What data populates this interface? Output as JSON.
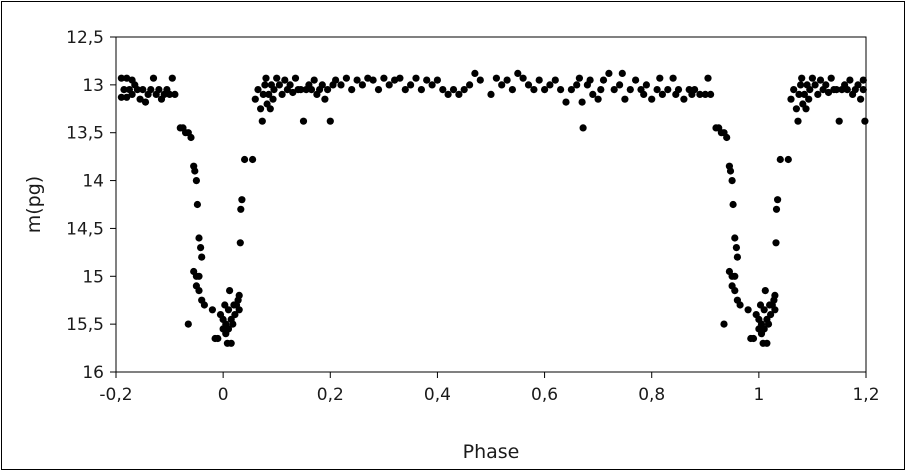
{
  "chart_data": {
    "type": "scatter",
    "xlabel": "Phase",
    "ylabel": "m(pg)",
    "xlim": [
      -0.2,
      1.2
    ],
    "ylim": [
      16,
      12.5
    ],
    "y_inverted": true,
    "grid": false,
    "legend": "none",
    "marker_color": "#000000",
    "x_ticks": [
      "-0,2",
      "0",
      "0,2",
      "0,4",
      "0,6",
      "0,8",
      "1",
      "1,2"
    ],
    "x_tick_values": [
      -0.2,
      0,
      0.2,
      0.4,
      0.6,
      0.8,
      1,
      1.2
    ],
    "y_ticks": [
      "12,5",
      "13",
      "13,5",
      "14",
      "14,5",
      "15",
      "15,5",
      "16"
    ],
    "y_tick_values": [
      12.5,
      13,
      13.5,
      14,
      14.5,
      15,
      15.5,
      16
    ],
    "series": [
      {
        "points": [
          [
            -0.19,
            12.93
          ],
          [
            -0.19,
            13.13
          ],
          [
            -0.185,
            13.05
          ],
          [
            -0.18,
            12.93
          ],
          [
            -0.18,
            13.13
          ],
          [
            -0.175,
            13.05
          ],
          [
            -0.17,
            12.95
          ],
          [
            -0.17,
            13.1
          ],
          [
            -0.165,
            13.0
          ],
          [
            -0.16,
            13.05
          ],
          [
            -0.155,
            13.15
          ],
          [
            -0.15,
            13.05
          ],
          [
            -0.145,
            13.18
          ],
          [
            -0.14,
            13.1
          ],
          [
            -0.135,
            13.05
          ],
          [
            -0.13,
            12.93
          ],
          [
            -0.125,
            13.1
          ],
          [
            -0.12,
            13.05
          ],
          [
            -0.115,
            13.15
          ],
          [
            -0.11,
            13.1
          ],
          [
            -0.105,
            13.05
          ],
          [
            -0.1,
            13.1
          ],
          [
            -0.095,
            12.93
          ],
          [
            -0.09,
            13.1
          ],
          [
            -0.08,
            13.45
          ],
          [
            -0.075,
            13.45
          ],
          [
            -0.07,
            13.5
          ],
          [
            -0.065,
            13.5
          ],
          [
            -0.06,
            13.55
          ],
          [
            -0.055,
            13.85
          ],
          [
            -0.053,
            13.9
          ],
          [
            -0.05,
            14.0
          ],
          [
            -0.048,
            14.25
          ],
          [
            -0.045,
            14.6
          ],
          [
            -0.042,
            14.7
          ],
          [
            -0.04,
            14.8
          ],
          [
            -0.055,
            14.95
          ],
          [
            -0.05,
            15.0
          ],
          [
            -0.045,
            15.0
          ],
          [
            -0.05,
            15.1
          ],
          [
            -0.045,
            15.15
          ],
          [
            -0.04,
            15.25
          ],
          [
            -0.035,
            15.3
          ],
          [
            -0.065,
            15.5
          ],
          [
            -0.02,
            15.35
          ],
          [
            -0.015,
            15.65
          ],
          [
            -0.01,
            15.65
          ],
          [
            -0.005,
            15.4
          ],
          [
            0.0,
            15.45
          ],
          [
            0.0,
            15.55
          ],
          [
            0.003,
            15.3
          ],
          [
            0.005,
            15.5
          ],
          [
            0.005,
            15.6
          ],
          [
            0.008,
            15.7
          ],
          [
            0.01,
            15.35
          ],
          [
            0.01,
            15.55
          ],
          [
            0.012,
            15.15
          ],
          [
            0.015,
            15.45
          ],
          [
            0.015,
            15.7
          ],
          [
            0.018,
            15.5
          ],
          [
            0.02,
            15.3
          ],
          [
            0.022,
            15.4
          ],
          [
            0.025,
            15.3
          ],
          [
            0.028,
            15.25
          ],
          [
            0.03,
            15.2
          ],
          [
            0.03,
            15.35
          ],
          [
            0.032,
            14.65
          ],
          [
            0.033,
            14.3
          ],
          [
            0.035,
            14.2
          ],
          [
            0.04,
            13.78
          ],
          [
            0.055,
            13.78
          ],
          [
            0.06,
            13.15
          ],
          [
            0.065,
            13.05
          ],
          [
            0.07,
            13.25
          ],
          [
            0.073,
            13.38
          ],
          [
            0.075,
            13.1
          ],
          [
            0.078,
            13.0
          ],
          [
            0.08,
            12.93
          ],
          [
            0.082,
            13.2
          ],
          [
            0.085,
            13.1
          ],
          [
            0.088,
            13.25
          ],
          [
            0.09,
            13.0
          ],
          [
            0.093,
            13.15
          ],
          [
            0.095,
            13.05
          ],
          [
            0.1,
            12.93
          ],
          [
            0.105,
            13.0
          ],
          [
            0.11,
            13.1
          ],
          [
            0.115,
            12.95
          ],
          [
            0.12,
            13.05
          ],
          [
            0.125,
            13.0
          ],
          [
            0.13,
            13.08
          ],
          [
            0.135,
            12.93
          ],
          [
            0.14,
            13.05
          ],
          [
            0.145,
            13.05
          ],
          [
            0.15,
            13.38
          ],
          [
            0.155,
            13.05
          ],
          [
            0.16,
            13.0
          ],
          [
            0.165,
            13.05
          ],
          [
            0.17,
            12.95
          ],
          [
            0.175,
            13.1
          ],
          [
            0.18,
            13.05
          ],
          [
            0.185,
            13.0
          ],
          [
            0.19,
            13.15
          ],
          [
            0.195,
            13.05
          ],
          [
            0.2,
            13.38
          ],
          [
            0.205,
            13.0
          ],
          [
            0.21,
            12.95
          ],
          [
            0.22,
            13.0
          ],
          [
            0.23,
            12.93
          ],
          [
            0.24,
            13.05
          ],
          [
            0.25,
            12.95
          ],
          [
            0.26,
            13.0
          ],
          [
            0.27,
            12.93
          ],
          [
            0.28,
            12.95
          ],
          [
            0.29,
            13.05
          ],
          [
            0.3,
            12.93
          ],
          [
            0.31,
            13.0
          ],
          [
            0.32,
            12.95
          ],
          [
            0.33,
            12.93
          ],
          [
            0.34,
            13.05
          ],
          [
            0.35,
            13.0
          ],
          [
            0.36,
            12.93
          ],
          [
            0.37,
            13.05
          ],
          [
            0.38,
            12.95
          ],
          [
            0.39,
            13.0
          ],
          [
            0.4,
            12.95
          ],
          [
            0.41,
            13.05
          ],
          [
            0.42,
            13.1
          ],
          [
            0.43,
            13.05
          ],
          [
            0.44,
            13.1
          ],
          [
            0.45,
            13.05
          ],
          [
            0.46,
            13.0
          ],
          [
            0.47,
            12.88
          ],
          [
            0.48,
            12.95
          ],
          [
            0.5,
            13.1
          ],
          [
            0.51,
            12.93
          ],
          [
            0.52,
            13.0
          ],
          [
            0.53,
            12.95
          ],
          [
            0.54,
            13.05
          ],
          [
            0.55,
            12.88
          ],
          [
            0.56,
            12.93
          ],
          [
            0.57,
            13.0
          ],
          [
            0.58,
            13.05
          ],
          [
            0.59,
            12.95
          ],
          [
            0.6,
            13.05
          ],
          [
            0.61,
            13.0
          ],
          [
            0.62,
            12.95
          ],
          [
            0.63,
            13.05
          ],
          [
            0.64,
            13.18
          ],
          [
            0.65,
            13.05
          ],
          [
            0.66,
            13.0
          ],
          [
            0.665,
            12.93
          ],
          [
            0.67,
            13.18
          ],
          [
            0.672,
            13.45
          ],
          [
            0.68,
            13.0
          ],
          [
            0.685,
            12.95
          ],
          [
            0.69,
            13.1
          ],
          [
            0.7,
            13.15
          ],
          [
            0.705,
            13.05
          ],
          [
            0.71,
            12.95
          ],
          [
            0.72,
            12.88
          ],
          [
            0.73,
            13.05
          ],
          [
            0.74,
            13.0
          ],
          [
            0.745,
            12.88
          ],
          [
            0.75,
            13.15
          ],
          [
            0.76,
            13.05
          ],
          [
            0.77,
            12.95
          ],
          [
            0.78,
            13.05
          ],
          [
            0.785,
            13.1
          ],
          [
            0.79,
            13.0
          ],
          [
            0.8,
            13.15
          ],
          [
            0.81,
            13.05
          ],
          [
            0.815,
            12.93
          ],
          [
            0.82,
            13.1
          ],
          [
            0.83,
            13.05
          ],
          [
            0.84,
            12.93
          ],
          [
            0.845,
            13.1
          ],
          [
            0.85,
            13.05
          ],
          [
            0.86,
            13.15
          ],
          [
            0.87,
            13.05
          ],
          [
            0.875,
            13.1
          ],
          [
            0.88,
            13.05
          ],
          [
            0.89,
            13.1
          ],
          [
            0.9,
            13.1
          ],
          [
            0.905,
            12.93
          ],
          [
            0.91,
            13.1
          ],
          [
            0.92,
            13.45
          ],
          [
            0.925,
            13.45
          ],
          [
            0.93,
            13.5
          ],
          [
            0.935,
            13.5
          ],
          [
            0.94,
            13.55
          ],
          [
            0.945,
            13.85
          ],
          [
            0.947,
            13.9
          ],
          [
            0.95,
            14.0
          ],
          [
            0.952,
            14.25
          ],
          [
            0.955,
            14.6
          ],
          [
            0.958,
            14.7
          ],
          [
            0.96,
            14.8
          ],
          [
            0.945,
            14.95
          ],
          [
            0.95,
            15.0
          ],
          [
            0.955,
            15.0
          ],
          [
            0.95,
            15.1
          ],
          [
            0.955,
            15.15
          ],
          [
            0.96,
            15.25
          ],
          [
            0.965,
            15.3
          ],
          [
            0.935,
            15.5
          ],
          [
            0.98,
            15.35
          ],
          [
            0.985,
            15.65
          ],
          [
            0.99,
            15.65
          ],
          [
            0.995,
            15.4
          ],
          [
            1.0,
            15.45
          ],
          [
            1.0,
            15.55
          ],
          [
            1.003,
            15.3
          ],
          [
            1.005,
            15.5
          ],
          [
            1.005,
            15.6
          ],
          [
            1.008,
            15.7
          ],
          [
            1.01,
            15.35
          ],
          [
            1.01,
            15.55
          ],
          [
            1.012,
            15.15
          ],
          [
            1.015,
            15.45
          ],
          [
            1.015,
            15.7
          ],
          [
            1.018,
            15.5
          ],
          [
            1.02,
            15.3
          ],
          [
            1.022,
            15.4
          ],
          [
            1.025,
            15.3
          ],
          [
            1.028,
            15.25
          ],
          [
            1.03,
            15.2
          ],
          [
            1.03,
            15.35
          ],
          [
            1.032,
            14.65
          ],
          [
            1.033,
            14.3
          ],
          [
            1.035,
            14.2
          ],
          [
            1.04,
            13.78
          ],
          [
            1.055,
            13.78
          ],
          [
            1.06,
            13.15
          ],
          [
            1.065,
            13.05
          ],
          [
            1.07,
            13.25
          ],
          [
            1.073,
            13.38
          ],
          [
            1.075,
            13.1
          ],
          [
            1.078,
            13.0
          ],
          [
            1.08,
            12.93
          ],
          [
            1.082,
            13.2
          ],
          [
            1.085,
            13.1
          ],
          [
            1.088,
            13.25
          ],
          [
            1.09,
            13.0
          ],
          [
            1.093,
            13.15
          ],
          [
            1.095,
            13.05
          ],
          [
            1.1,
            12.93
          ],
          [
            1.105,
            13.0
          ],
          [
            1.11,
            13.1
          ],
          [
            1.115,
            12.95
          ],
          [
            1.12,
            13.05
          ],
          [
            1.125,
            13.0
          ],
          [
            1.13,
            13.08
          ],
          [
            1.135,
            12.93
          ],
          [
            1.14,
            13.05
          ],
          [
            1.145,
            13.05
          ],
          [
            1.15,
            13.38
          ],
          [
            1.155,
            13.05
          ],
          [
            1.16,
            13.0
          ],
          [
            1.165,
            13.05
          ],
          [
            1.17,
            12.95
          ],
          [
            1.175,
            13.1
          ],
          [
            1.18,
            13.05
          ],
          [
            1.185,
            13.0
          ],
          [
            1.19,
            13.15
          ],
          [
            1.195,
            13.05
          ],
          [
            1.198,
            13.38
          ],
          [
            1.195,
            12.95
          ]
        ]
      }
    ]
  }
}
